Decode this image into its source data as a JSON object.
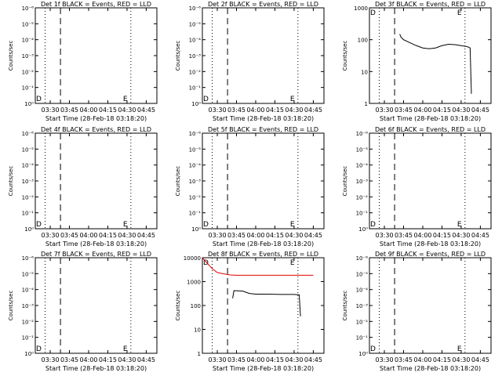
{
  "x_ticks": [
    "03:30",
    "03:45",
    "04:00",
    "04:15",
    "04:30",
    "04:45"
  ],
  "xlabel": "Start Time (28-Feb-18 03:18:20)",
  "ylabel": "Counts/sec",
  "colors": {
    "events": "#000000",
    "lld": "#e00000"
  },
  "chart_data": [
    {
      "type": "line",
      "title": "Det 1f BLACK = Events, RED = LLD",
      "y_scale": "log",
      "y_ticks": [
        "10⁰",
        "10⁻¹",
        "10⁻²",
        "10⁻³",
        "10⁻⁴",
        "10⁻⁵",
        "10⁻⁶"
      ],
      "markers": {
        "left": "D",
        "right": "E"
      },
      "series": []
    },
    {
      "type": "line",
      "title": "Det 2f BLACK = Events, RED = LLD",
      "y_scale": "log",
      "y_ticks": [
        "10⁰",
        "10⁻¹",
        "10⁻²",
        "10⁻³",
        "10⁻⁴",
        "10⁻⁵",
        "10⁻⁶"
      ],
      "markers": {
        "left": "D",
        "right": "E"
      },
      "series": []
    },
    {
      "type": "line",
      "title": "Det 3f BLACK = Events, RED = LLD",
      "y_scale": "log",
      "y_ticks": [
        "1",
        "10",
        "100",
        "1000"
      ],
      "markers": {
        "left": "D",
        "right": "E"
      },
      "series": [
        {
          "color": "events",
          "x": [
            "03:42",
            "03:43",
            "03:45",
            "03:50",
            "03:55",
            "04:00",
            "04:05",
            "04:10",
            "04:15",
            "04:20",
            "04:25",
            "04:30",
            "04:35",
            "04:37",
            "04:38"
          ],
          "y": [
            150,
            120,
            100,
            80,
            65,
            55,
            52,
            55,
            65,
            72,
            70,
            65,
            60,
            55,
            2
          ]
        }
      ]
    },
    {
      "type": "line",
      "title": "Det 4f BLACK = Events, RED = LLD",
      "y_scale": "log",
      "y_ticks": [
        "10⁰",
        "10⁻¹",
        "10⁻²",
        "10⁻³",
        "10⁻⁴",
        "10⁻⁵",
        "10⁻⁶"
      ],
      "markers": {
        "left": "D",
        "right": "E"
      },
      "series": []
    },
    {
      "type": "line",
      "title": "Det 5f BLACK = Events, RED = LLD",
      "y_scale": "log",
      "y_ticks": [
        "10⁰",
        "10⁻¹",
        "10⁻²",
        "10⁻³",
        "10⁻⁴",
        "10⁻⁵",
        "10⁻⁶"
      ],
      "markers": {
        "left": "D",
        "right": "E"
      },
      "series": []
    },
    {
      "type": "line",
      "title": "Det 6f BLACK = Events, RED = LLD",
      "y_scale": "log",
      "y_ticks": [
        "10⁰",
        "10⁻¹",
        "10⁻²",
        "10⁻³",
        "10⁻⁴",
        "10⁻⁵",
        "10⁻⁶"
      ],
      "markers": {
        "left": "D",
        "right": "E"
      },
      "series": []
    },
    {
      "type": "line",
      "title": "Det 7f BLACK = Events, RED = LLD",
      "y_scale": "log",
      "y_ticks": [
        "10⁰",
        "10⁻¹",
        "10⁻²",
        "10⁻³",
        "10⁻⁴",
        "10⁻⁵",
        "10⁻⁶"
      ],
      "markers": {
        "left": "D",
        "right": "E"
      },
      "series": []
    },
    {
      "type": "line",
      "title": "Det 8f BLACK = Events, RED = LLD",
      "y_scale": "log",
      "y_ticks": [
        "1",
        "10",
        "100",
        "1000",
        "10000"
      ],
      "markers": {
        "left": "D",
        "right": "E"
      },
      "series": [
        {
          "color": "lld",
          "x": [
            "03:18",
            "03:22",
            "03:26",
            "03:30",
            "03:35",
            "03:40",
            "03:45",
            "04:00",
            "04:15",
            "04:30",
            "04:45"
          ],
          "y": [
            10000,
            6000,
            3500,
            2400,
            2100,
            1900,
            1850,
            1850,
            1850,
            1850,
            1850
          ]
        },
        {
          "color": "events",
          "x": [
            "03:42",
            "03:43",
            "03:50",
            "03:55",
            "04:00",
            "04:10",
            "04:20",
            "04:30",
            "04:34",
            "04:35"
          ],
          "y": [
            200,
            420,
            400,
            320,
            300,
            300,
            290,
            290,
            280,
            35
          ]
        }
      ]
    },
    {
      "type": "line",
      "title": "Det 9f BLACK = Events, RED = LLD",
      "y_scale": "log",
      "y_ticks": [
        "10⁰",
        "10⁻¹",
        "10⁻²",
        "10⁻³",
        "10⁻⁴",
        "10⁻⁵",
        "10⁻⁶"
      ],
      "markers": {
        "left": "D",
        "right": "E"
      },
      "series": []
    }
  ]
}
